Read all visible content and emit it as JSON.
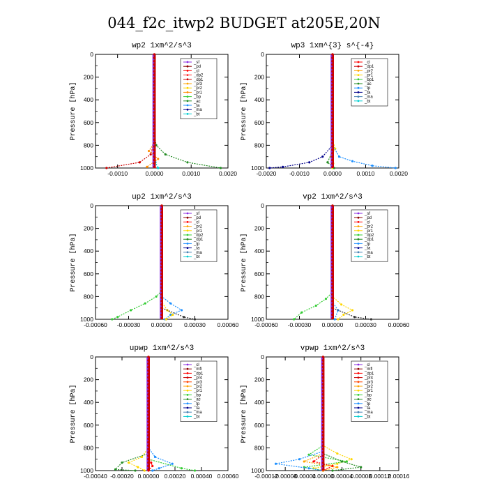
{
  "figure": {
    "title": "044_f2c_itwp2  BUDGET at205E,20N"
  },
  "chart_data": [
    {
      "type": "line",
      "title": "wp2  1xm^2/s^3",
      "ylabel": "Pressure  [hPa]",
      "xlim": [
        -0.0016,
        0.002
      ],
      "ylim": [
        1000,
        0
      ],
      "xticks": [
        -0.001,
        0.0,
        0.001,
        0.002
      ],
      "xtick_labels": [
        "-0.0010",
        "0.0000",
        "0.0010",
        "0.0020"
      ],
      "yticks": [
        0,
        200,
        400,
        600,
        800,
        1000
      ],
      "legend": [
        "_sf",
        "_pd",
        "_cl",
        "_dp2",
        "_dp1",
        "_pr3",
        "_pr2",
        "_pr1",
        "_bp",
        "_ac",
        "_ta",
        "_ma",
        "_bt"
      ],
      "colors": [
        "#8a2be2",
        "#8b0000",
        "#ff0000",
        "#ff2a2a",
        "#cc0000",
        "#ffa500",
        "#ffd700",
        "#ff8c00",
        "#33cc33",
        "#228b22",
        "#1e90ff",
        "#00008b",
        "#00ced1"
      ],
      "series": [
        {
          "name": "_dp1",
          "pressure": [
            700,
            800,
            880,
            950,
            1000
          ],
          "value": [
            0.0,
            -3e-05,
            -0.0001,
            -0.0004,
            -0.0013
          ]
        },
        {
          "name": "_ac",
          "pressure": [
            700,
            800,
            880,
            950,
            1000
          ],
          "value": [
            0.0,
            5e-05,
            0.0003,
            0.0009,
            0.0018
          ]
        },
        {
          "name": "_pr1",
          "pressure": [
            780,
            850,
            920,
            990
          ],
          "value": [
            0.0,
            -0.00015,
            0.0001,
            -0.0002
          ]
        },
        {
          "name": "_bt",
          "pressure": [
            800,
            950,
            1000
          ],
          "value": [
            0.0,
            3e-05,
            0.0001
          ]
        }
      ]
    },
    {
      "type": "line",
      "title": "wp3  1xm^{3} s^{-4}",
      "ylabel": "Pressure  [hPa]",
      "xlim": [
        -0.002,
        0.002
      ],
      "ylim": [
        1000,
        0
      ],
      "xticks": [
        -0.002,
        -0.001,
        0.0,
        0.001,
        0.002
      ],
      "xtick_labels": [
        "-0.0020",
        "-0.0010",
        "0.0000",
        "0.0010",
        "0.0020"
      ],
      "yticks": [
        0,
        200,
        400,
        600,
        800,
        1000
      ],
      "legend": [
        "_cl",
        "_dp1",
        "_pr2",
        "_pr1",
        "_bp1",
        "_ac",
        "_tp",
        "_ta",
        "_ma",
        "_bt"
      ],
      "colors": [
        "#ff0000",
        "#cc0000",
        "#ffa500",
        "#ffd700",
        "#33cc33",
        "#228b22",
        "#1e90ff",
        "#00008b",
        "#4682b4",
        "#00ced1"
      ],
      "series": [
        {
          "name": "_pr1",
          "pressure": [
            750,
            830,
            900,
            960,
            1000
          ],
          "value": [
            0.0,
            8e-05,
            -5e-05,
            2e-05,
            0.0
          ]
        },
        {
          "name": "_tp",
          "pressure": [
            800,
            900,
            940,
            980,
            1000
          ],
          "value": [
            0.0,
            0.0002,
            0.0006,
            0.0012,
            0.0019
          ]
        },
        {
          "name": "_ta",
          "pressure": [
            800,
            900,
            950,
            990,
            1000
          ],
          "value": [
            0.0,
            -0.0003,
            -0.0007,
            -0.0015,
            -0.0019
          ]
        },
        {
          "name": "_ac",
          "pressure": [
            850,
            950,
            1000
          ],
          "value": [
            0.0,
            -0.00015,
            5e-05
          ]
        }
      ]
    },
    {
      "type": "line",
      "title": "up2  1xm^2/s^3",
      "ylabel": "Pressure  [hPa]",
      "xlim": [
        -0.0006,
        0.0006
      ],
      "ylim": [
        1000,
        0
      ],
      "xticks": [
        -0.0006,
        -0.0003,
        0.0,
        0.0003,
        0.0006
      ],
      "xtick_labels": [
        "-0.00060",
        "-0.00030",
        "0.00000",
        "0.00030",
        "0.00060"
      ],
      "yticks": [
        0,
        200,
        400,
        600,
        800,
        1000
      ],
      "legend": [
        "_sf",
        "_pd",
        "_cl",
        "_pr2",
        "_pr1",
        "_dp2",
        "_dp1",
        "_tp",
        "_ta",
        "_ma",
        "_bt"
      ],
      "colors": [
        "#8a2be2",
        "#8b0000",
        "#ff0000",
        "#ffa500",
        "#ffd700",
        "#33cc33",
        "#228b22",
        "#1e90ff",
        "#00008b",
        "#4682b4",
        "#00ced1"
      ],
      "series": [
        {
          "name": "_dp2",
          "pressure": [
            750,
            800,
            860,
            920,
            980,
            1000
          ],
          "value": [
            0.0,
            -5e-05,
            -0.00015,
            -0.00028,
            -0.0004,
            -0.00045
          ]
        },
        {
          "name": "_tp",
          "pressure": [
            800,
            860,
            920,
            960,
            1000
          ],
          "value": [
            0.0,
            8e-05,
            0.00018,
            8e-05,
            3e-05
          ]
        },
        {
          "name": "_pr1",
          "pressure": [
            850,
            920,
            960,
            1000
          ],
          "value": [
            0.0,
            5e-05,
            0.0001,
            4e-05
          ]
        },
        {
          "name": "_ac",
          "pressure": [
            900,
            980,
            1000
          ],
          "value": [
            0.0,
            0.0002,
            0.0003
          ]
        }
      ]
    },
    {
      "type": "line",
      "title": "vp2  1xm^2/s^3",
      "ylabel": "Pressure  [hPa]",
      "xlim": [
        -0.0006,
        0.0006
      ],
      "ylim": [
        1000,
        0
      ],
      "xticks": [
        -0.0006,
        -0.0003,
        0.0,
        0.0003,
        0.0006
      ],
      "xtick_labels": [
        "-0.00060",
        "-0.00030",
        "0.00000",
        "0.00030",
        "0.00060"
      ],
      "yticks": [
        0,
        200,
        400,
        600,
        800,
        1000
      ],
      "legend": [
        "_sf",
        "_pd",
        "_cl",
        "_pr2",
        "_pr1",
        "_dp2",
        "_dp1",
        "_tp",
        "_ta",
        "_ma",
        "_bt"
      ],
      "colors": [
        "#8a2be2",
        "#8b0000",
        "#ff0000",
        "#ffa500",
        "#ffd700",
        "#33cc33",
        "#228b22",
        "#1e90ff",
        "#00008b",
        "#4682b4",
        "#00ced1"
      ],
      "series": [
        {
          "name": "_dp2",
          "pressure": [
            760,
            820,
            880,
            940,
            1000
          ],
          "value": [
            0.0,
            -6e-05,
            -0.00015,
            -0.00028,
            -0.00035
          ]
        },
        {
          "name": "_pr1",
          "pressure": [
            800,
            870,
            920,
            960,
            1000
          ],
          "value": [
            0.0,
            8e-05,
            0.00018,
            0.0001,
            5e-05
          ]
        },
        {
          "name": "_tp",
          "pressure": [
            850,
            920,
            1000
          ],
          "value": [
            0.0,
            5e-05,
            2e-05
          ]
        },
        {
          "name": "_ac",
          "pressure": [
            900,
            980,
            1000
          ],
          "value": [
            0.0,
            0.0002,
            0.00035
          ]
        }
      ]
    },
    {
      "type": "line",
      "title": "upwp  1xm^2/s^3",
      "ylabel": "Pressure  [hPa]",
      "xlim": [
        -0.0004,
        0.0006
      ],
      "ylim": [
        1000,
        0
      ],
      "xticks": [
        -0.0004,
        -0.0002,
        0.0,
        0.0002,
        0.0004,
        0.0006
      ],
      "xtick_labels": [
        "-0.00040",
        "-0.00020",
        "0.00000",
        "0.00020",
        "0.00040",
        "0.00060"
      ],
      "yticks": [
        0,
        200,
        400,
        600,
        800,
        1000
      ],
      "legend": [
        "_cl",
        "_mfl",
        "_dp1",
        "_pr4",
        "_pr3",
        "_pr2",
        "_pr1",
        "_bp",
        "_ac",
        "_tp",
        "_ta",
        "_ma",
        "_bt"
      ],
      "colors": [
        "#8a2be2",
        "#8b0000",
        "#ff0000",
        "#cc0000",
        "#ff4500",
        "#ffa500",
        "#ffd700",
        "#33cc33",
        "#228b22",
        "#1e90ff",
        "#00008b",
        "#4682b4",
        "#00ced1"
      ],
      "series": [
        {
          "name": "_pr1",
          "pressure": [
            800,
            880,
            930,
            970,
            1000
          ],
          "value": [
            0.0,
            -5e-05,
            -0.00015,
            -8e-05,
            -3e-05
          ]
        },
        {
          "name": "_tp",
          "pressure": [
            800,
            880,
            940,
            980,
            1000
          ],
          "value": [
            0.0,
            5e-05,
            0.00018,
            8e-05,
            3e-05
          ]
        },
        {
          "name": "_ac",
          "pressure": [
            850,
            930,
            990,
            1000
          ],
          "value": [
            0.0,
            -0.0002,
            -0.00025,
            -0.0001
          ]
        },
        {
          "name": "_bp",
          "pressure": [
            900,
            980,
            1000
          ],
          "value": [
            0.0,
            0.00025,
            0.00035
          ]
        },
        {
          "name": "_dp1",
          "pressure": [
            880,
            930,
            960,
            1000
          ],
          "value": [
            0.0,
            2e-05,
            3e-05,
            0.0
          ]
        }
      ]
    },
    {
      "type": "line",
      "title": "vpwp  1xm^2/s^3",
      "ylabel": "Pressure  [hPa]",
      "xlim": [
        -0.00012,
        0.00016
      ],
      "ylim": [
        1000,
        0
      ],
      "xticks": [
        -0.00012,
        -8e-05,
        -4e-05,
        0.0,
        4e-05,
        8e-05,
        0.00012,
        0.00016
      ],
      "xtick_labels": [
        "-0.00012",
        "-0.00008",
        "-0.00004",
        "0.00000",
        "0.00004",
        "0.00008",
        "0.00012",
        "0.00016"
      ],
      "yticks": [
        0,
        200,
        400,
        600,
        800,
        1000
      ],
      "legend": [
        "_cl",
        "_mfl",
        "_dp1",
        "_pr4",
        "_pr3",
        "_pr2",
        "_pr1",
        "_bp",
        "_ac",
        "_tp",
        "_ta",
        "_ma",
        "_bt"
      ],
      "colors": [
        "#8a2be2",
        "#8b0000",
        "#ff0000",
        "#cc0000",
        "#ff4500",
        "#ffa500",
        "#ffd700",
        "#33cc33",
        "#228b22",
        "#1e90ff",
        "#00008b",
        "#4682b4",
        "#00ced1"
      ],
      "series": [
        {
          "name": "_pr1",
          "pressure": [
            780,
            850,
            900,
            940,
            980,
            1000
          ],
          "value": [
            0.0,
            3e-05,
            6e-05,
            3e-05,
            -2e-05,
            0.0
          ]
        },
        {
          "name": "_bp",
          "pressure": [
            780,
            860,
            920,
            970,
            1000
          ],
          "value": [
            0.0,
            -3e-05,
            5e-05,
            -4e-05,
            0.0
          ]
        },
        {
          "name": "_tp",
          "pressure": [
            830,
            900,
            940,
            980,
            1000
          ],
          "value": [
            0.0,
            -5e-05,
            -0.0001,
            -3e-05,
            0.0
          ]
        },
        {
          "name": "_ac",
          "pressure": [
            850,
            920,
            970,
            1000
          ],
          "value": [
            0.0,
            4e-05,
            8e-05,
            2e-05
          ]
        },
        {
          "name": "_dp1",
          "pressure": [
            860,
            920,
            960,
            1000
          ],
          "value": [
            0.0,
            -2e-05,
            2e-05,
            0.0
          ]
        },
        {
          "name": "_pr2",
          "pressure": [
            850,
            920,
            970,
            1000
          ],
          "value": [
            0.0,
            -4e-05,
            3e-05,
            0.0
          ]
        }
      ]
    }
  ]
}
